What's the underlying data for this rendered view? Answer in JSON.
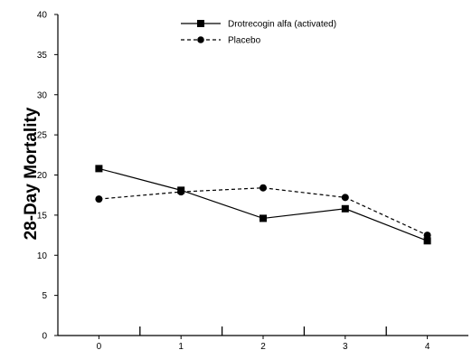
{
  "chart_data": {
    "type": "line",
    "title": "",
    "xlabel": "",
    "ylabel": "28-Day Mortality",
    "x": [
      0,
      1,
      2,
      3,
      4
    ],
    "xticks": [
      "0",
      "1",
      "2",
      "3",
      "4"
    ],
    "yticks": [
      "0",
      "5",
      "10",
      "15",
      "20",
      "25",
      "30",
      "35",
      "40"
    ],
    "ylim": [
      0,
      40
    ],
    "xlim": [
      -0.5,
      4.5
    ],
    "grid": false,
    "legend_position": "top-center",
    "series": [
      {
        "name": "Drotrecogin alfa (activated)",
        "values": [
          20.8,
          18.1,
          14.6,
          15.8,
          11.8
        ],
        "line_style": "solid",
        "marker": "square",
        "color": "#000000"
      },
      {
        "name": "Placebo",
        "values": [
          17.0,
          17.9,
          18.4,
          17.2,
          12.5
        ],
        "line_style": "dashed",
        "marker": "circle",
        "color": "#000000"
      }
    ]
  }
}
